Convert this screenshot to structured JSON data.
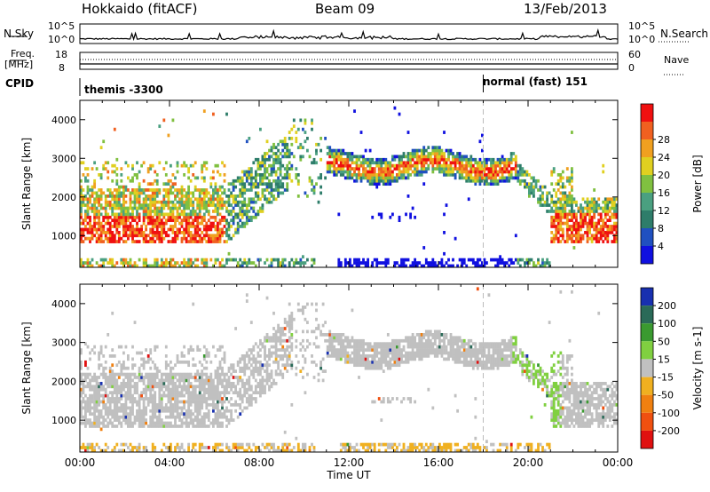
{
  "header": {
    "station": "Hokkaido (fitACF)",
    "beam": "Beam 09",
    "date": "13/Feb/2013"
  },
  "params": {
    "nsky_label": "N.Sky",
    "nsearch_label": "N.Search",
    "freq_label": "Freq.",
    "freq_unit": "[MHz]",
    "nave_label": "Nave",
    "cpid_label": "CPID",
    "noise_left_ticks": [
      "10^5",
      "10^0"
    ],
    "noise_right_ticks": [
      "10^5",
      "10^0"
    ],
    "freq_ticks": [
      "18",
      "8"
    ],
    "nave_ticks": [
      "60",
      "0"
    ],
    "cpid_segments": [
      {
        "label": "themis -3300",
        "start_hour": 0
      },
      {
        "label": "normal (fast) 151",
        "start_hour": 18
      }
    ]
  },
  "chart_data": [
    {
      "type": "heatmap",
      "name": "power",
      "ylabel": "Slant Range [km]",
      "ylim": [
        180,
        4500
      ],
      "yticks": [
        1000,
        2000,
        3000,
        4000
      ],
      "xlim_hours": [
        0,
        24
      ],
      "colorbar_label": "Power [dB]",
      "colorbar_ticks": [
        "4",
        "8",
        "12",
        "16",
        "20",
        "24",
        "28"
      ],
      "colors": [
        "#1010e0",
        "#2050c0",
        "#2e7d6a",
        "#4aa080",
        "#80c040",
        "#e0d020",
        "#f0a020",
        "#f06020",
        "#f01010"
      ]
    },
    {
      "type": "heatmap",
      "name": "velocity",
      "ylabel": "Slant Range [km]",
      "ylim": [
        180,
        4500
      ],
      "yticks": [
        1000,
        2000,
        3000,
        4000
      ],
      "xlim_hours": [
        0,
        24
      ],
      "xlabel": "Time UT",
      "xticks": [
        "00:00",
        "04:00",
        "08:00",
        "12:00",
        "16:00",
        "20:00",
        "00:00"
      ],
      "colorbar_label": "Velocity [m s-1]",
      "colorbar_ticks": [
        "200",
        "100",
        "50",
        "15",
        "-15",
        "-50",
        "-100",
        "-200"
      ],
      "colors": [
        "#1830b0",
        "#2a6a58",
        "#3a9a30",
        "#80d040",
        "#c0c0c0",
        "#f0b020",
        "#f08010",
        "#f05010",
        "#e01010"
      ]
    }
  ]
}
